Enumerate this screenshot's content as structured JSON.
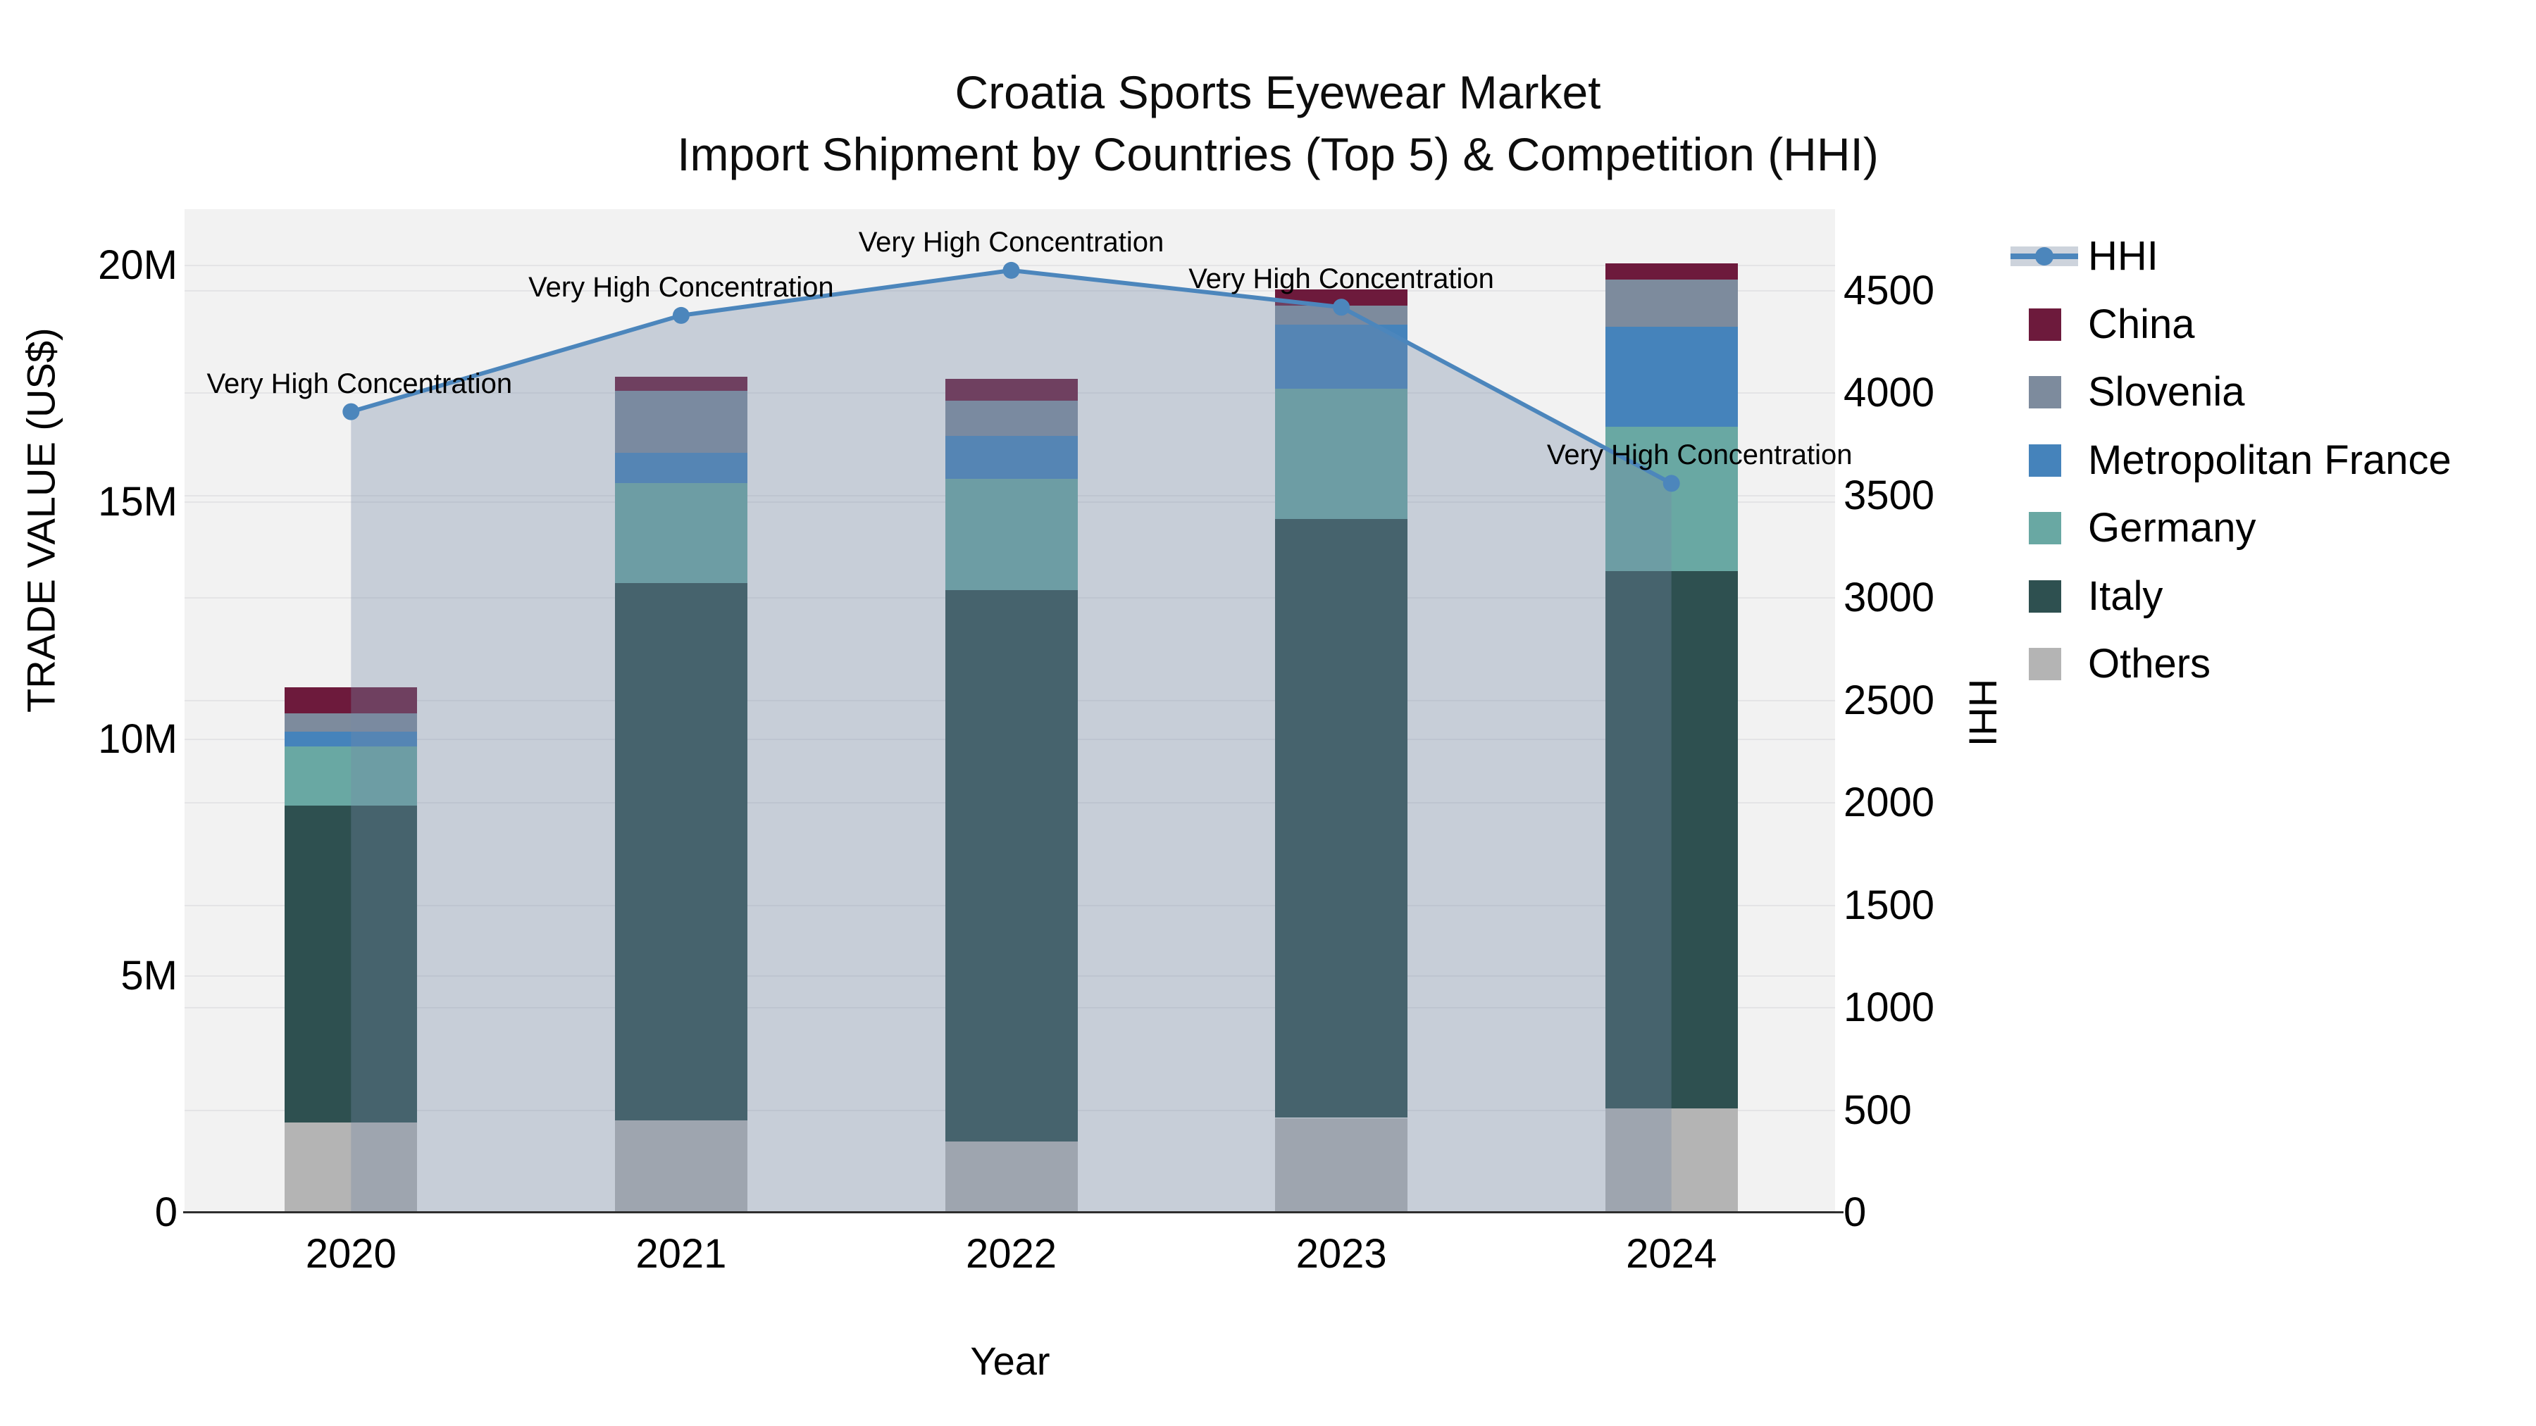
{
  "title": {
    "line1": "Croatia Sports Eyewear Market",
    "line2": "Import Shipment by Countries (Top 5) & Competition (HHI)"
  },
  "axes": {
    "x_label": "Year",
    "y_left_label": "TRADE VALUE (US$)",
    "y_right_label": "HHI",
    "y_left_ticks": [
      {
        "value": 0,
        "label": "0"
      },
      {
        "value": 5,
        "label": "5M"
      },
      {
        "value": 10,
        "label": "10M"
      },
      {
        "value": 15,
        "label": "15M"
      },
      {
        "value": 20,
        "label": "20M"
      }
    ],
    "y_right_ticks": [
      0,
      500,
      1000,
      1500,
      2000,
      2500,
      3000,
      3500,
      4000,
      4500
    ]
  },
  "legend": {
    "items": [
      {
        "label": "HHI",
        "type": "line",
        "color": "#4C86BC",
        "band": "#CDD3DC"
      },
      {
        "label": "China",
        "type": "swatch",
        "color": "#6D1A3C"
      },
      {
        "label": "Slovenia",
        "type": "swatch",
        "color": "#7D8B9D"
      },
      {
        "label": "Metropolitan France",
        "type": "swatch",
        "color": "#4583BB"
      },
      {
        "label": "Germany",
        "type": "swatch",
        "color": "#69A8A3"
      },
      {
        "label": "Italy",
        "type": "swatch",
        "color": "#2E5050"
      },
      {
        "label": "Others",
        "type": "swatch",
        "color": "#B4B4B4"
      }
    ]
  },
  "chart_data": {
    "type": "bar",
    "subtype": "stacked-bars-with-line-area-overlay",
    "title": "Croatia Sports Eyewear Market",
    "subtitle": "Import Shipment by Countries (Top 5) & Competition (HHI)",
    "xlabel": "Year",
    "ylabel_left": "TRADE VALUE (US$)",
    "ylabel_right": "HHI",
    "categories": [
      "2020",
      "2021",
      "2022",
      "2023",
      "2024"
    ],
    "value_unit": "million US$",
    "y_left_range": [
      0,
      21.2
    ],
    "y_right_range": [
      0,
      4900
    ],
    "grid": true,
    "legend_position": "right",
    "series": [
      {
        "name": "Others",
        "color": "#B4B4B4",
        "values": [
          1.9,
          1.95,
          1.5,
          2.0,
          2.2
        ]
      },
      {
        "name": "Italy",
        "color": "#2E5050",
        "values": [
          6.7,
          11.35,
          11.65,
          12.65,
          11.35
        ]
      },
      {
        "name": "Germany",
        "color": "#69A8A3",
        "values": [
          1.25,
          2.1,
          2.35,
          2.75,
          3.05
        ]
      },
      {
        "name": "Metropolitan France",
        "color": "#4583BB",
        "values": [
          0.3,
          0.65,
          0.9,
          1.35,
          2.1
        ]
      },
      {
        "name": "Slovenia",
        "color": "#7D8B9D",
        "values": [
          0.4,
          1.3,
          0.75,
          0.4,
          1.0
        ]
      },
      {
        "name": "China",
        "color": "#6D1A3C",
        "values": [
          0.55,
          0.3,
          0.45,
          0.35,
          0.35
        ]
      }
    ],
    "bar_totals": [
      11.1,
      17.65,
      17.6,
      19.5,
      20.05
    ],
    "line_series": {
      "name": "HHI",
      "color": "#4C86BC",
      "area_fill": "rgba(118,137,167,0.34)",
      "values": [
        3910,
        4380,
        4600,
        4420,
        3560
      ]
    },
    "annotations": [
      {
        "category": "2020",
        "text": "Very High Concentration"
      },
      {
        "category": "2021",
        "text": "Very High Concentration"
      },
      {
        "category": "2022",
        "text": "Very High Concentration"
      },
      {
        "category": "2023",
        "text": "Very High Concentration"
      },
      {
        "category": "2024",
        "text": "Very High Concentration"
      }
    ]
  }
}
